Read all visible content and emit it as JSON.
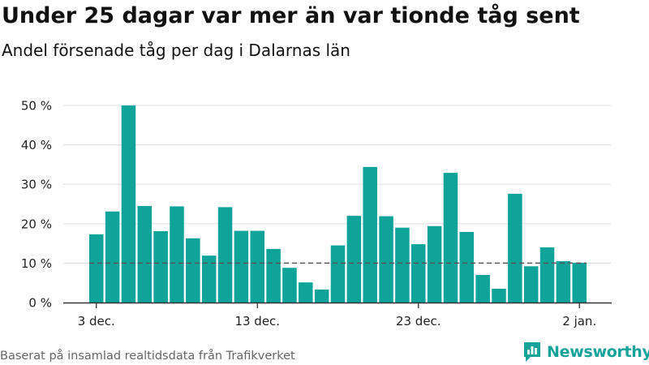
{
  "chart_data": {
    "type": "bar",
    "title": "Under 25 dagar var mer än var tionde tåg sent",
    "subtitle": "Andel försenade tåg per dag i Dalarnas län",
    "values": [
      17.3,
      23.1,
      50.0,
      24.5,
      18.1,
      24.4,
      16.3,
      11.9,
      24.2,
      18.2,
      18.2,
      13.6,
      8.8,
      5.1,
      3.3,
      14.5,
      22.0,
      34.4,
      21.9,
      19.0,
      14.8,
      19.4,
      32.9,
      17.9,
      7.0,
      3.5,
      27.6,
      9.2,
      14.0,
      10.5,
      10.1
    ],
    "x_tick_labels": [
      "3 dec.",
      "13 dec.",
      "23 dec.",
      "2 jan."
    ],
    "y_tick_labels": [
      "0 %",
      "10 %",
      "20 %",
      "30 %",
      "40 %",
      "50 %"
    ],
    "ylim": [
      0,
      50
    ],
    "reference_line": 10,
    "grid": true,
    "bar_color": "#0fa39a",
    "reference_line_color": "#555555"
  },
  "footer": {
    "source": "Baserat på insamlad realtidsdata från Trafikverket",
    "logo_text": "Newsworthy"
  }
}
